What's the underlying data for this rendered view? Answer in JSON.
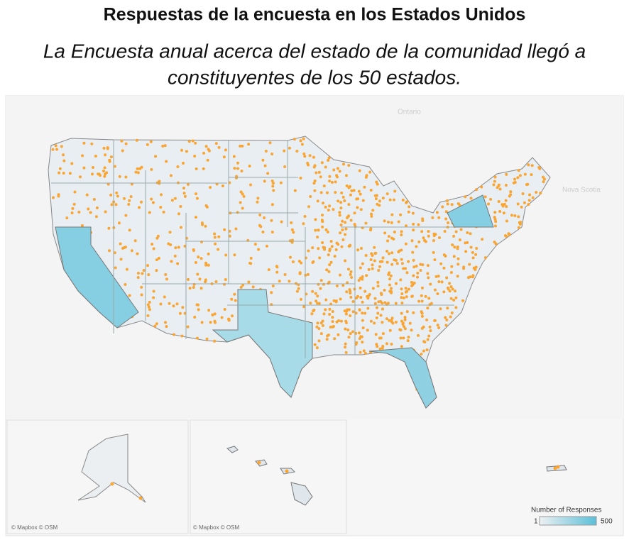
{
  "header": {
    "title": "Respuestas de la encuesta en los Estados Unidos",
    "subtitle_lines": [
      "La Encuesta anual acerca del estado de la comunidad llegó a",
      "constituyentes de los 50 estados."
    ]
  },
  "map": {
    "place_labels": [
      "Ontario",
      "Nova Scotia"
    ],
    "attributions": [
      "© Mapbox © OSM",
      "© Mapbox © OSM"
    ],
    "point_color": "#f9a533"
  },
  "legend": {
    "title": "Number of Responses",
    "min": 1,
    "max": 500,
    "colors": [
      "#eef0f2",
      "#5bbfd8"
    ]
  }
}
